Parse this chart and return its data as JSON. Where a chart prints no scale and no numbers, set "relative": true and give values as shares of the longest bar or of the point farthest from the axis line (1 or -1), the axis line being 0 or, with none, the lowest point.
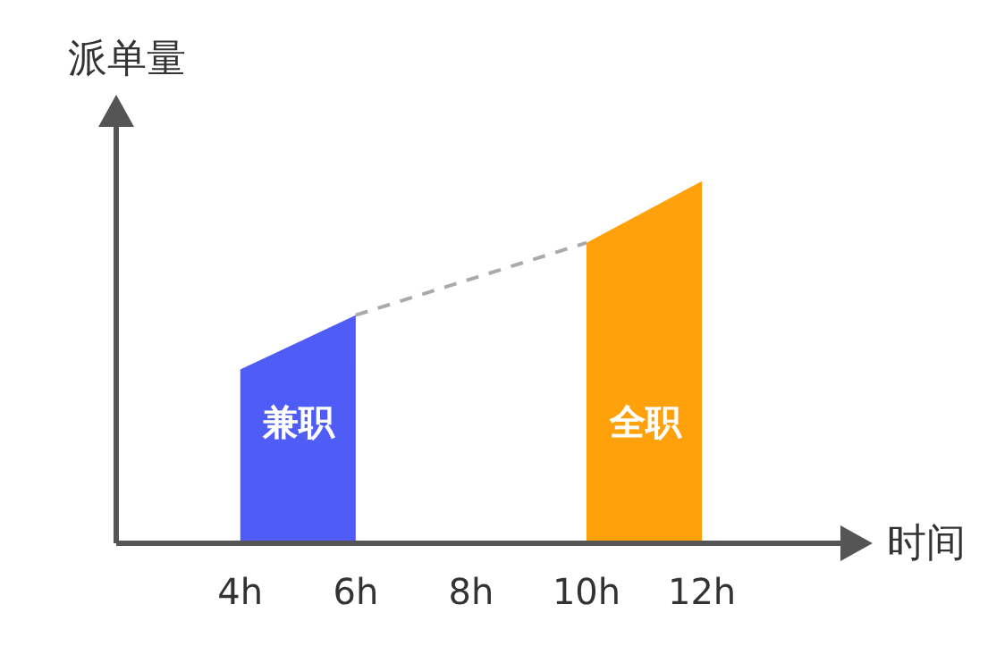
{
  "chart_data": {
    "type": "area",
    "relative": true,
    "xlabel": "时间",
    "ylabel": "派单量",
    "xlim": [
      1.85,
      14.4
    ],
    "xticks": [
      {
        "value": 4,
        "label": "4h"
      },
      {
        "value": 6,
        "label": "6h"
      },
      {
        "value": 8,
        "label": "8h"
      },
      {
        "value": 10,
        "label": "10h"
      },
      {
        "value": 12,
        "label": "12h"
      }
    ],
    "series": [
      {
        "name": "兼职",
        "color": "#4f5cf5",
        "x": [
          4,
          6
        ],
        "values": [
          0.48,
          0.63
        ]
      },
      {
        "name": "全职",
        "color": "#ffa10a",
        "x": [
          10,
          12
        ],
        "values": [
          0.83,
          1
        ]
      },
      {
        "type": "line",
        "color": "#aaaaaa",
        "line_style": "dashed",
        "marker": "none",
        "x": [
          6,
          10
        ],
        "values": [
          0.63,
          0.83
        ]
      }
    ],
    "grid": false,
    "legend": false
  }
}
